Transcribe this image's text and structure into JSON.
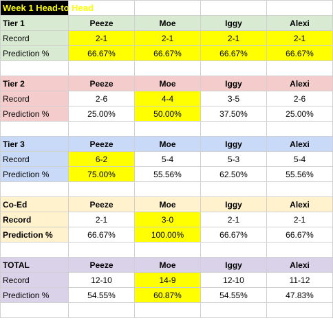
{
  "title": "Week 1 Head-to Head",
  "colors": {
    "title_bg": "#000000",
    "title_text": "#ffff00",
    "highlight": "#ffff00",
    "tier1": "#d9ead3",
    "tier2": "#f4cccc",
    "tier3": "#c9daf8",
    "coed": "#fff2cc",
    "total": "#d9d2e9"
  },
  "sections": [
    {
      "name": "Tier 1",
      "players": [
        "Peeze",
        "Moe",
        "Iggy",
        "Alexi"
      ],
      "record_label": "Record",
      "records": [
        "2-1",
        "2-1",
        "2-1",
        "2-1"
      ],
      "prediction_label": "Prediction %",
      "predictions": [
        "66.67%",
        "66.67%",
        "66.67%",
        "66.67%"
      ]
    },
    {
      "name": "Tier 2",
      "players": [
        "Peeze",
        "Moe",
        "Iggy",
        "Alexi"
      ],
      "record_label": "Record",
      "records": [
        "2-6",
        "4-4",
        "3-5",
        "2-6"
      ],
      "prediction_label": "Prediction %",
      "predictions": [
        "25.00%",
        "50.00%",
        "37.50%",
        "25.00%"
      ]
    },
    {
      "name": "Tier 3",
      "players": [
        "Peeze",
        "Moe",
        "Iggy",
        "Alexi"
      ],
      "record_label": "Record",
      "records": [
        "6-2",
        "5-4",
        "5-3",
        "5-4"
      ],
      "prediction_label": "Prediction %",
      "predictions": [
        "75.00%",
        "55.56%",
        "62.50%",
        "55.56%"
      ]
    },
    {
      "name": "Co-Ed",
      "players": [
        "Peeze",
        "Moe",
        "Iggy",
        "Alexi"
      ],
      "record_label": "Record",
      "records": [
        "2-1",
        "3-0",
        "2-1",
        "2-1"
      ],
      "prediction_label": "Prediction %",
      "predictions": [
        "66.67%",
        "100.00%",
        "66.67%",
        "66.67%"
      ]
    },
    {
      "name": "TOTAL",
      "players": [
        "Peeze",
        "Moe",
        "Iggy",
        "Alexi"
      ],
      "record_label": "Record",
      "records": [
        "12-10",
        "14-9",
        "12-10",
        "11-12"
      ],
      "prediction_label": "Prediction %",
      "predictions": [
        "54.55%",
        "60.87%",
        "54.55%",
        "47.83%"
      ]
    }
  ]
}
